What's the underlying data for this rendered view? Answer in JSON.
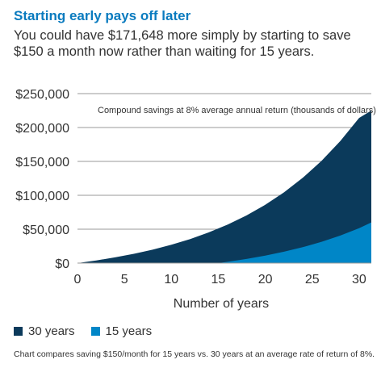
{
  "header": {
    "title": "Starting early pays off later",
    "subtitle": "You could have $171,648 more simply by starting to save $150 a month now rather than waiting for 15 years."
  },
  "chart_data": {
    "type": "area",
    "title": "",
    "annotation": "Compound savings at 8% average annual return (thousands of dollars)",
    "xlabel": "Number of years",
    "ylabel": "",
    "xlim": [
      0,
      31.3
    ],
    "ylim": [
      0,
      250000
    ],
    "x_ticks": [
      0,
      5,
      10,
      15,
      20,
      25,
      30
    ],
    "y_ticks": [
      0,
      50000,
      100000,
      150000,
      200000,
      250000
    ],
    "y_tick_labels": [
      "$0",
      "$50,000",
      "$100,000",
      "$150,000",
      "$200,000",
      "$250,000"
    ],
    "grid": "horizontal",
    "legend_position": "bottom-left",
    "series": [
      {
        "name": "30 years",
        "color": "#0b3a5b",
        "x": [
          0,
          2,
          4,
          6,
          8,
          10,
          12,
          14,
          16,
          18,
          20,
          22,
          24,
          26,
          28,
          30,
          31.3
        ],
        "values": [
          0,
          3900,
          8400,
          13700,
          19800,
          27000,
          35400,
          45300,
          56800,
          70200,
          86000,
          104300,
          125800,
          150800,
          180100,
          214200,
          225000
        ]
      },
      {
        "name": "15 years",
        "color": "#0086c7",
        "x": [
          0,
          15,
          16,
          18,
          20,
          22,
          24,
          26,
          28,
          30,
          31.3
        ],
        "values": [
          0,
          0,
          1900,
          6100,
          11000,
          16800,
          23500,
          31400,
          40600,
          51600,
          60000
        ]
      }
    ]
  },
  "legend": {
    "items": [
      {
        "label": "30 years",
        "color": "#0b3a5b"
      },
      {
        "label": "15 years",
        "color": "#0086c7"
      }
    ]
  },
  "footnote": "Chart compares saving $150/month for 15 years vs. 30 years at an average rate of return of 8%."
}
